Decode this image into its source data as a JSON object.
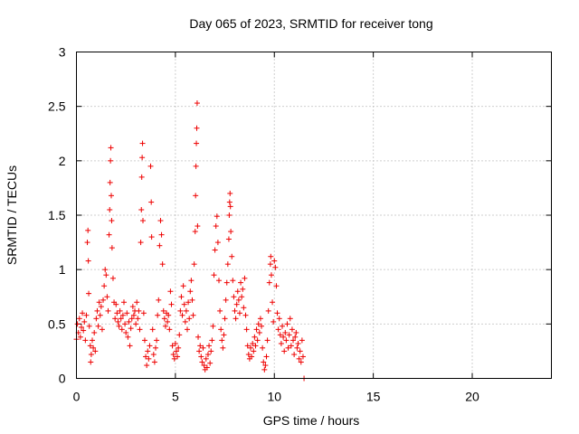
{
  "chart_data": {
    "type": "scatter",
    "title": "Day 065 of 2023, SRMTID for receiver tong",
    "xlabel": "GPS time / hours",
    "ylabel": "SRMTID / TECUs",
    "xlim": [
      0,
      24
    ],
    "ylim": [
      0,
      3
    ],
    "xticks": [
      0,
      5,
      10,
      15,
      20
    ],
    "yticks": [
      0,
      0.5,
      1,
      1.5,
      2,
      2.5,
      3
    ],
    "xtick_labels": [
      "0",
      "5",
      "10",
      "15",
      "20"
    ],
    "ytick_labels": [
      "0",
      "0.5",
      "1",
      "1.5",
      "2",
      "2.5",
      "3"
    ],
    "grid": true,
    "marker": "plus",
    "color": "#ee0000",
    "series": [
      {
        "name": "SRMTID",
        "points": [
          [
            0.0,
            0.36
          ],
          [
            0.05,
            0.5
          ],
          [
            0.1,
            0.42
          ],
          [
            0.15,
            0.55
          ],
          [
            0.2,
            0.38
          ],
          [
            0.25,
            0.47
          ],
          [
            0.3,
            0.6
          ],
          [
            0.35,
            0.44
          ],
          [
            0.4,
            0.52
          ],
          [
            0.45,
            0.35
          ],
          [
            0.5,
            0.58
          ],
          [
            0.55,
            1.25
          ],
          [
            0.58,
            1.36
          ],
          [
            0.6,
            1.08
          ],
          [
            0.62,
            0.78
          ],
          [
            0.65,
            0.48
          ],
          [
            0.7,
            0.3
          ],
          [
            0.72,
            0.15
          ],
          [
            0.75,
            0.22
          ],
          [
            0.8,
            0.35
          ],
          [
            0.85,
            0.28
          ],
          [
            0.9,
            0.42
          ],
          [
            0.95,
            0.25
          ],
          [
            1.0,
            0.55
          ],
          [
            1.05,
            0.62
          ],
          [
            1.1,
            0.48
          ],
          [
            1.15,
            0.7
          ],
          [
            1.2,
            0.58
          ],
          [
            1.25,
            0.66
          ],
          [
            1.3,
            0.45
          ],
          [
            1.35,
            0.72
          ],
          [
            1.4,
            0.85
          ],
          [
            1.45,
            1.0
          ],
          [
            1.5,
            0.95
          ],
          [
            1.55,
            0.75
          ],
          [
            1.6,
            0.62
          ],
          [
            1.65,
            1.32
          ],
          [
            1.68,
            1.55
          ],
          [
            1.7,
            1.8
          ],
          [
            1.72,
            2.0
          ],
          [
            1.74,
            2.12
          ],
          [
            1.76,
            1.68
          ],
          [
            1.78,
            1.45
          ],
          [
            1.8,
            1.2
          ],
          [
            1.85,
            0.92
          ],
          [
            1.9,
            0.7
          ],
          [
            1.95,
            0.55
          ],
          [
            2.0,
            0.68
          ],
          [
            2.05,
            0.6
          ],
          [
            2.1,
            0.52
          ],
          [
            2.15,
            0.48
          ],
          [
            2.2,
            0.62
          ],
          [
            2.25,
            0.55
          ],
          [
            2.3,
            0.45
          ],
          [
            2.35,
            0.58
          ],
          [
            2.4,
            0.7
          ],
          [
            2.45,
            0.5
          ],
          [
            2.5,
            0.42
          ],
          [
            2.55,
            0.6
          ],
          [
            2.6,
            0.38
          ],
          [
            2.65,
            0.52
          ],
          [
            2.7,
            0.3
          ],
          [
            2.75,
            0.46
          ],
          [
            2.8,
            0.55
          ],
          [
            2.85,
            0.66
          ],
          [
            2.9,
            0.58
          ],
          [
            2.95,
            0.62
          ],
          [
            3.0,
            0.5
          ],
          [
            3.05,
            0.7
          ],
          [
            3.1,
            0.55
          ],
          [
            3.15,
            0.62
          ],
          [
            3.2,
            0.45
          ],
          [
            3.25,
            1.25
          ],
          [
            3.28,
            1.55
          ],
          [
            3.3,
            1.85
          ],
          [
            3.32,
            2.03
          ],
          [
            3.34,
            2.16
          ],
          [
            3.36,
            1.45
          ],
          [
            3.4,
            0.6
          ],
          [
            3.45,
            0.35
          ],
          [
            3.5,
            0.2
          ],
          [
            3.55,
            0.12
          ],
          [
            3.6,
            0.25
          ],
          [
            3.65,
            0.18
          ],
          [
            3.7,
            0.3
          ],
          [
            3.75,
            1.95
          ],
          [
            3.78,
            1.62
          ],
          [
            3.8,
            1.3
          ],
          [
            3.85,
            0.45
          ],
          [
            3.9,
            0.22
          ],
          [
            3.95,
            0.15
          ],
          [
            4.0,
            0.28
          ],
          [
            4.05,
            0.35
          ],
          [
            4.1,
            0.58
          ],
          [
            4.15,
            0.72
          ],
          [
            4.2,
            1.22
          ],
          [
            4.25,
            1.45
          ],
          [
            4.3,
            1.32
          ],
          [
            4.35,
            1.05
          ],
          [
            4.4,
            0.62
          ],
          [
            4.45,
            0.55
          ],
          [
            4.5,
            0.48
          ],
          [
            4.55,
            0.6
          ],
          [
            4.6,
            0.52
          ],
          [
            4.65,
            0.58
          ],
          [
            4.7,
            0.45
          ],
          [
            4.75,
            0.8
          ],
          [
            4.8,
            0.68
          ],
          [
            4.85,
            0.3
          ],
          [
            4.9,
            0.22
          ],
          [
            4.95,
            0.18
          ],
          [
            5.0,
            0.32
          ],
          [
            5.05,
            0.25
          ],
          [
            5.1,
            0.2
          ],
          [
            5.15,
            0.28
          ],
          [
            5.2,
            0.4
          ],
          [
            5.25,
            0.62
          ],
          [
            5.3,
            0.75
          ],
          [
            5.35,
            0.58
          ],
          [
            5.4,
            0.85
          ],
          [
            5.45,
            0.68
          ],
          [
            5.5,
            0.52
          ],
          [
            5.55,
            0.62
          ],
          [
            5.6,
            0.45
          ],
          [
            5.65,
            0.7
          ],
          [
            5.7,
            0.55
          ],
          [
            5.75,
            0.8
          ],
          [
            5.8,
            0.9
          ],
          [
            5.85,
            0.72
          ],
          [
            5.9,
            0.58
          ],
          [
            5.95,
            1.05
          ],
          [
            6.0,
            1.35
          ],
          [
            6.02,
            1.68
          ],
          [
            6.04,
            1.95
          ],
          [
            6.06,
            2.16
          ],
          [
            6.08,
            2.3
          ],
          [
            6.1,
            2.53
          ],
          [
            6.12,
            1.4
          ],
          [
            6.15,
            0.38
          ],
          [
            6.2,
            0.25
          ],
          [
            6.25,
            0.3
          ],
          [
            6.3,
            0.2
          ],
          [
            6.35,
            0.15
          ],
          [
            6.4,
            0.28
          ],
          [
            6.45,
            0.12
          ],
          [
            6.5,
            0.08
          ],
          [
            6.55,
            0.18
          ],
          [
            6.6,
            0.1
          ],
          [
            6.65,
            0.22
          ],
          [
            6.7,
            0.3
          ],
          [
            6.75,
            0.14
          ],
          [
            6.8,
            0.25
          ],
          [
            6.85,
            0.35
          ],
          [
            6.9,
            0.48
          ],
          [
            6.95,
            0.95
          ],
          [
            7.0,
            1.18
          ],
          [
            7.05,
            1.4
          ],
          [
            7.1,
            1.49
          ],
          [
            7.15,
            1.25
          ],
          [
            7.2,
            0.9
          ],
          [
            7.25,
            0.62
          ],
          [
            7.3,
            0.45
          ],
          [
            7.35,
            0.35
          ],
          [
            7.4,
            0.28
          ],
          [
            7.45,
            0.4
          ],
          [
            7.5,
            0.55
          ],
          [
            7.55,
            0.72
          ],
          [
            7.6,
            0.88
          ],
          [
            7.65,
            1.05
          ],
          [
            7.7,
            1.28
          ],
          [
            7.72,
            1.5
          ],
          [
            7.74,
            1.62
          ],
          [
            7.76,
            1.7
          ],
          [
            7.78,
            1.58
          ],
          [
            7.8,
            1.35
          ],
          [
            7.85,
            1.12
          ],
          [
            7.9,
            0.9
          ],
          [
            7.95,
            0.75
          ],
          [
            8.0,
            0.62
          ],
          [
            8.05,
            0.55
          ],
          [
            8.1,
            0.68
          ],
          [
            8.15,
            0.8
          ],
          [
            8.2,
            0.72
          ],
          [
            8.25,
            0.6
          ],
          [
            8.3,
            0.88
          ],
          [
            8.35,
            0.75
          ],
          [
            8.4,
            0.82
          ],
          [
            8.45,
            0.65
          ],
          [
            8.5,
            0.92
          ],
          [
            8.55,
            0.58
          ],
          [
            8.6,
            0.45
          ],
          [
            8.65,
            0.3
          ],
          [
            8.7,
            0.22
          ],
          [
            8.75,
            0.18
          ],
          [
            8.8,
            0.28
          ],
          [
            8.85,
            0.2
          ],
          [
            8.9,
            0.32
          ],
          [
            8.95,
            0.25
          ],
          [
            9.0,
            0.38
          ],
          [
            9.05,
            0.3
          ],
          [
            9.1,
            0.45
          ],
          [
            9.15,
            0.35
          ],
          [
            9.2,
            0.5
          ],
          [
            9.25,
            0.42
          ],
          [
            9.3,
            0.55
          ],
          [
            9.35,
            0.48
          ],
          [
            9.4,
            0.28
          ],
          [
            9.45,
            0.15
          ],
          [
            9.5,
            0.08
          ],
          [
            9.55,
            0.12
          ],
          [
            9.6,
            0.2
          ],
          [
            9.65,
            0.35
          ],
          [
            9.7,
            0.62
          ],
          [
            9.75,
            0.88
          ],
          [
            9.8,
            1.05
          ],
          [
            9.82,
            1.12
          ],
          [
            9.85,
            0.95
          ],
          [
            9.9,
            0.7
          ],
          [
            9.95,
            0.52
          ],
          [
            10.0,
            1.08
          ],
          [
            10.05,
            1.02
          ],
          [
            10.1,
            0.85
          ],
          [
            10.15,
            0.6
          ],
          [
            10.2,
            0.45
          ],
          [
            10.25,
            0.55
          ],
          [
            10.3,
            0.4
          ],
          [
            10.35,
            0.32
          ],
          [
            10.4,
            0.48
          ],
          [
            10.45,
            0.38
          ],
          [
            10.5,
            0.25
          ],
          [
            10.55,
            0.42
          ],
          [
            10.6,
            0.35
          ],
          [
            10.65,
            0.5
          ],
          [
            10.7,
            0.28
          ],
          [
            10.75,
            0.4
          ],
          [
            10.8,
            0.55
          ],
          [
            10.85,
            0.3
          ],
          [
            10.9,
            0.45
          ],
          [
            10.95,
            0.35
          ],
          [
            11.0,
            0.22
          ],
          [
            11.05,
            0.38
          ],
          [
            11.1,
            0.42
          ],
          [
            11.15,
            0.28
          ],
          [
            11.2,
            0.32
          ],
          [
            11.25,
            0.18
          ],
          [
            11.3,
            0.25
          ],
          [
            11.35,
            0.15
          ],
          [
            11.4,
            0.35
          ],
          [
            11.45,
            0.2
          ],
          [
            11.5,
            0.0
          ]
        ]
      }
    ]
  }
}
